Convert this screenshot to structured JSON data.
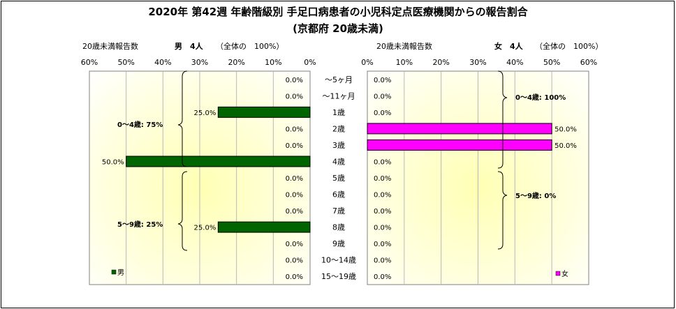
{
  "chart_data": {
    "type": "bar",
    "title": "2020年 第42週 年齢階級別 手足口病患者の小児科定点医療機関からの報告割合",
    "subtitle": "(京都府 20歳未満)",
    "categories": [
      "〜5ヶ月",
      "〜11ヶ月",
      "1歳",
      "2歳",
      "3歳",
      "4歳",
      "5歳",
      "6歳",
      "7歳",
      "8歳",
      "9歳",
      "10〜14歳",
      "15〜19歳"
    ],
    "series": [
      {
        "name": "男",
        "color": "#006400",
        "values": [
          0.0,
          0.0,
          25.0,
          0.0,
          0.0,
          50.0,
          0.0,
          0.0,
          0.0,
          25.0,
          0.0,
          0.0,
          0.0
        ],
        "header": "20歳未満報告数",
        "count_label": "男　4人",
        "total_label": "（全体の　100%）",
        "group_labels": [
          "0〜4歳: 75%",
          "5〜9歳: 25%"
        ]
      },
      {
        "name": "女",
        "color": "#FF00FF",
        "values": [
          0.0,
          0.0,
          0.0,
          50.0,
          50.0,
          0.0,
          0.0,
          0.0,
          0.0,
          0.0,
          0.0,
          0.0,
          0.0
        ],
        "header": "20歳未満報告数",
        "count_label": "女　4人",
        "total_label": "（全体の　100%）",
        "group_labels": [
          "0〜4歳: 100%",
          "5〜9歳: 0%"
        ]
      }
    ],
    "xticks": [
      "0%",
      "10%",
      "20%",
      "30%",
      "40%",
      "50%",
      "60%"
    ],
    "xlim": [
      0,
      60
    ],
    "value_format": "0.0%",
    "legend": [
      "男",
      "女"
    ],
    "legend_position": "bottom-left / bottom-right",
    "plot_background": "pale yellow radial gradient"
  }
}
